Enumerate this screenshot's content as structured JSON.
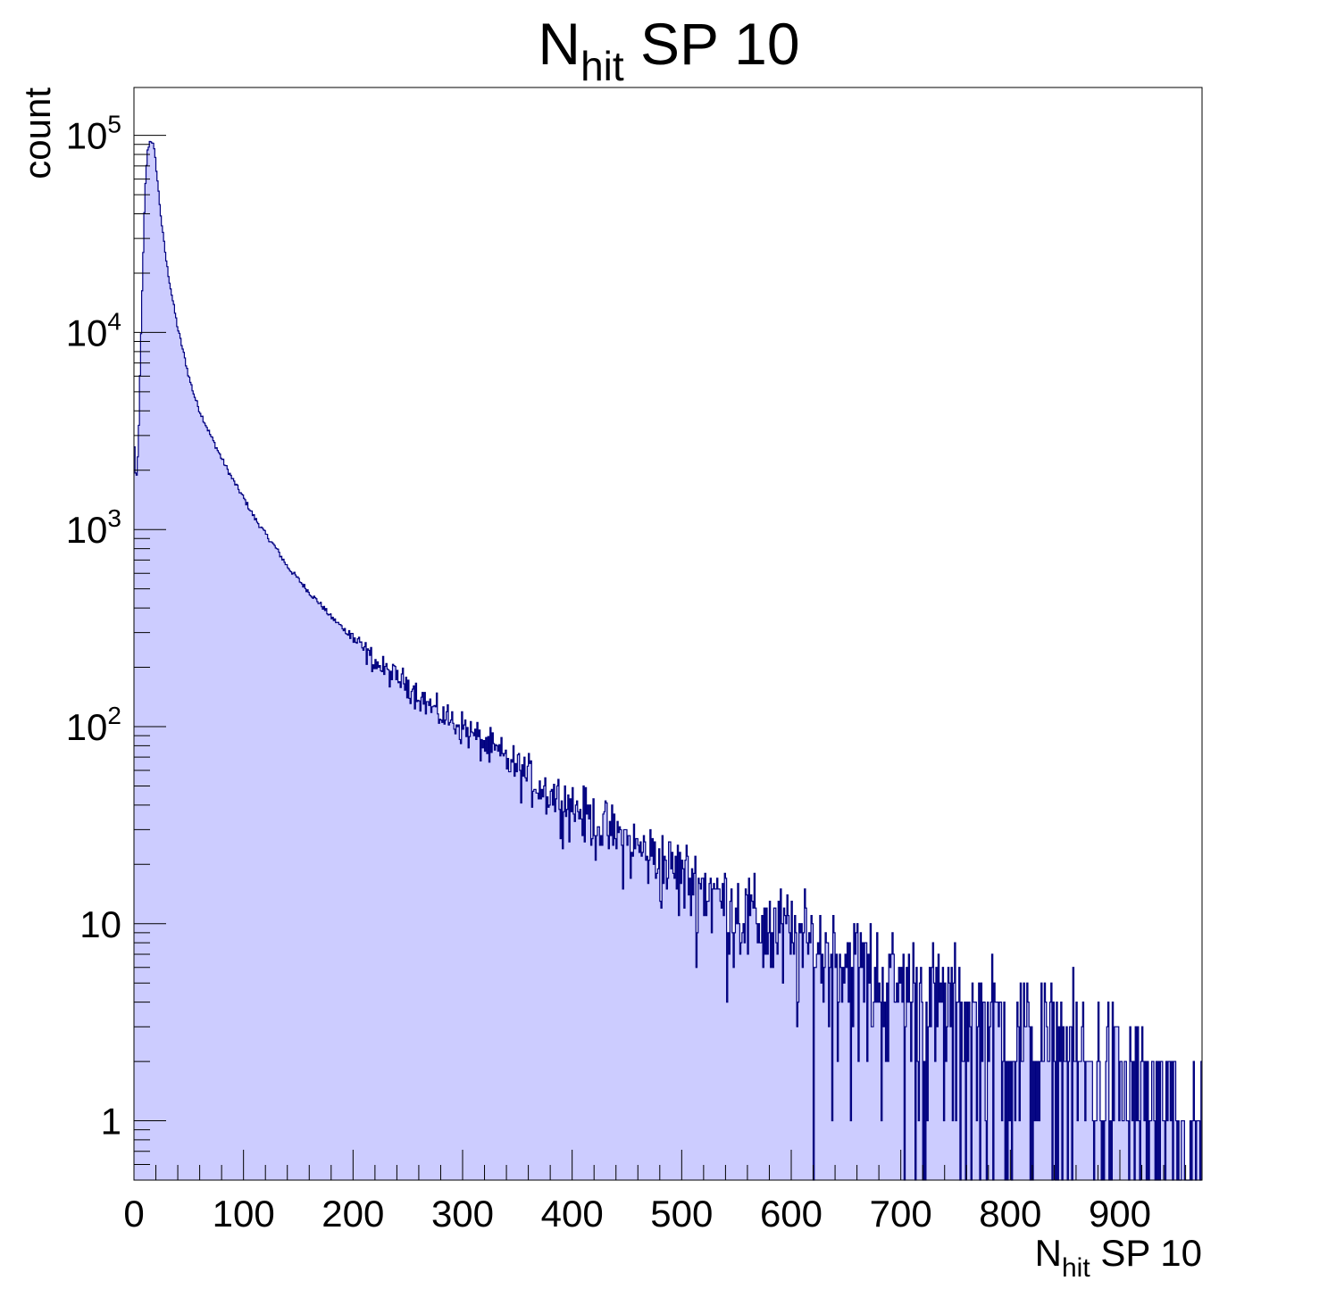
{
  "chart_data": {
    "type": "bar",
    "style": "filled-step-histogram",
    "title": {
      "main": "N",
      "sub": "hit",
      "rest": " SP 10"
    },
    "xlabel": {
      "main": "N",
      "sub": "hit",
      "rest": " SP 10"
    },
    "ylabel": "count",
    "xlim": [
      0,
      975
    ],
    "ylim": [
      0.5,
      175000
    ],
    "y_scale": "log",
    "grid": false,
    "legend": "none",
    "colors": {
      "fill": "#ccccff",
      "line": "#000080",
      "frame": "#000000"
    },
    "x_ticks": [
      "0",
      "100",
      "200",
      "300",
      "400",
      "500",
      "600",
      "700",
      "800",
      "900"
    ],
    "x_tick_values": [
      0,
      100,
      200,
      300,
      400,
      500,
      600,
      700,
      800,
      900
    ],
    "y_ticks": [
      {
        "base": "1",
        "exp": "",
        "value": 1
      },
      {
        "base": "10",
        "exp": "",
        "value": 10
      },
      {
        "base": "10",
        "exp": "2",
        "value": 100
      },
      {
        "base": "10",
        "exp": "3",
        "value": 1000
      },
      {
        "base": "10",
        "exp": "4",
        "value": 10000
      },
      {
        "base": "10",
        "exp": "5",
        "value": 100000
      }
    ],
    "series": [
      {
        "bin_width": 1,
        "x": [
          0,
          2,
          4,
          6,
          8,
          10,
          12,
          14,
          16,
          18,
          20,
          22,
          24,
          26,
          28,
          30,
          35,
          40,
          45,
          50,
          55,
          60,
          70,
          80,
          90,
          100,
          110,
          120,
          130,
          140,
          150,
          160,
          170,
          180,
          190,
          200,
          225,
          250,
          275,
          300,
          325,
          350,
          375,
          400,
          425,
          450,
          475,
          500,
          525,
          550,
          575,
          600,
          625,
          650,
          675,
          700,
          725,
          750,
          775,
          800,
          825,
          850,
          875,
          900,
          910,
          920,
          925,
          930,
          935,
          940,
          945,
          950,
          955,
          960,
          965,
          970
        ],
        "values": [
          3000,
          1700,
          2500,
          8000,
          20000,
          50000,
          80000,
          92000,
          95000,
          88000,
          72000,
          55000,
          42000,
          33000,
          27000,
          22000,
          15000,
          10500,
          8000,
          6000,
          4800,
          4000,
          3000,
          2300,
          1800,
          1450,
          1150,
          950,
          800,
          650,
          560,
          480,
          420,
          360,
          320,
          280,
          200,
          165,
          120,
          100,
          78,
          62,
          48,
          40,
          32,
          26,
          22,
          18,
          15,
          12,
          10,
          8.5,
          7.5,
          6.5,
          5.5,
          4.5,
          4,
          3.4,
          3,
          2.6,
          2.3,
          2,
          1.8,
          1.5,
          1.4,
          1.2,
          1,
          1,
          0.8,
          0.7,
          0.6,
          0.6,
          0.5,
          0.5,
          0.5,
          0.6
        ]
      }
    ]
  }
}
